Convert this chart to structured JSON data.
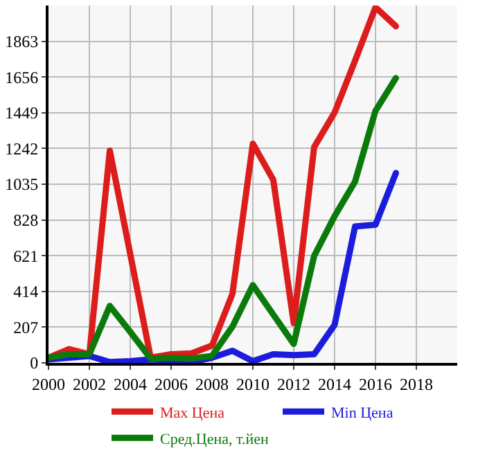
{
  "chart_data": {
    "type": "line",
    "x": [
      2000,
      2001,
      2002,
      2003,
      2004,
      2005,
      2006,
      2007,
      2008,
      2009,
      2010,
      2011,
      2012,
      2013,
      2014,
      2015,
      2016,
      2017
    ],
    "series": [
      {
        "name": "Max Цена",
        "color": "#dd1c1c",
        "values": [
          30,
          80,
          50,
          1230,
          630,
          30,
          50,
          55,
          100,
          400,
          1270,
          1060,
          230,
          1250,
          1450,
          1750,
          2060,
          1950
        ]
      },
      {
        "name": "Min Цена",
        "color": "#1c1cdd",
        "values": [
          20,
          30,
          40,
          5,
          10,
          20,
          15,
          5,
          30,
          70,
          10,
          50,
          45,
          50,
          220,
          790,
          800,
          1100
        ]
      },
      {
        "name": "Сред.Цена, т.йен",
        "color": "#0a7a0a",
        "values": [
          30,
          50,
          50,
          330,
          180,
          25,
          30,
          25,
          40,
          210,
          450,
          280,
          110,
          620,
          850,
          1050,
          1460,
          1650
        ]
      }
    ],
    "xlim": [
      2000,
      2020
    ],
    "xticks": [
      2000,
      2002,
      2004,
      2006,
      2008,
      2010,
      2012,
      2014,
      2016,
      2018
    ],
    "ylim": [
      0,
      2070
    ],
    "yticks": [
      0,
      207,
      414,
      621,
      828,
      1035,
      1242,
      1449,
      1656,
      1863
    ],
    "grid": true,
    "legend": "bottom",
    "marker": "none",
    "line_style": "solid"
  }
}
